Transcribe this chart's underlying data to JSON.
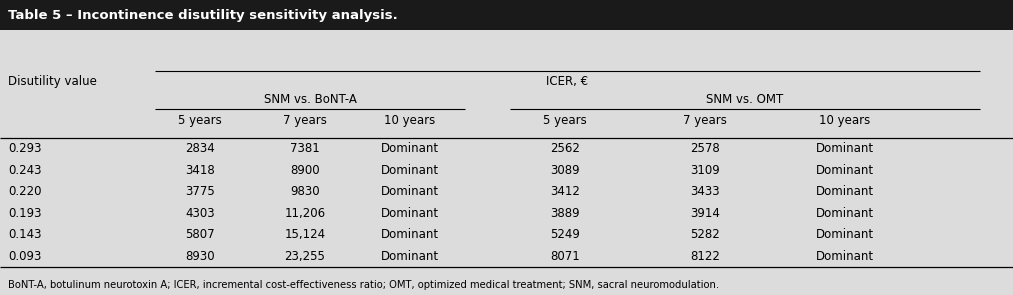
{
  "title": "Table 5 – Incontinence disutility sensitivity analysis.",
  "title_bg": "#1a1a1a",
  "title_fg": "#ffffff",
  "bg_color": "#dcdcdc",
  "header1": "Disutility value",
  "header2": "ICER, €",
  "subheader1": "SNM vs. BoNT-A",
  "subheader2": "SNM vs. OMT",
  "col_headers": [
    "5 years",
    "7 years",
    "10 years",
    "5 years",
    "7 years",
    "10 years"
  ],
  "rows": [
    [
      "0.293",
      "2834",
      "7381",
      "Dominant",
      "2562",
      "2578",
      "Dominant"
    ],
    [
      "0.243",
      "3418",
      "8900",
      "Dominant",
      "3089",
      "3109",
      "Dominant"
    ],
    [
      "0.220",
      "3775",
      "9830",
      "Dominant",
      "3412",
      "3433",
      "Dominant"
    ],
    [
      "0.193",
      "4303",
      "11,206",
      "Dominant",
      "3889",
      "3914",
      "Dominant"
    ],
    [
      "0.143",
      "5807",
      "15,124",
      "Dominant",
      "5249",
      "5282",
      "Dominant"
    ],
    [
      "0.093",
      "8930",
      "23,255",
      "Dominant",
      "8071",
      "8122",
      "Dominant"
    ]
  ],
  "footnote": "BoNT-A, botulinum neurotoxin A; ICER, incremental cost-effectiveness ratio; OMT, optimized medical treatment; SNM, sacral neuromodulation.",
  "fig_width": 10.13,
  "fig_height": 2.95,
  "dpi": 100
}
